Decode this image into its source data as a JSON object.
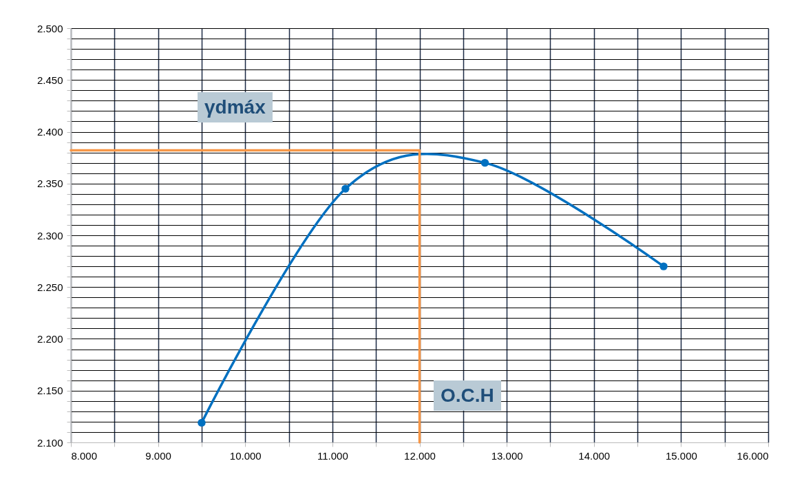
{
  "chart_data": {
    "type": "line",
    "xlim": [
      8,
      16
    ],
    "ylim": [
      2.1,
      2.5
    ],
    "grid": true,
    "xticks": [
      {
        "value": 8,
        "label": "8.000"
      },
      {
        "value": 8.5,
        "label": null
      },
      {
        "value": 9,
        "label": "9.000"
      },
      {
        "value": 9.5,
        "label": null
      },
      {
        "value": 10,
        "label": "10.000"
      },
      {
        "value": 10.5,
        "label": null
      },
      {
        "value": 11,
        "label": "11.000"
      },
      {
        "value": 11.5,
        "label": null
      },
      {
        "value": 12,
        "label": "12.000"
      },
      {
        "value": 12.5,
        "label": null
      },
      {
        "value": 13,
        "label": "13.000"
      },
      {
        "value": 13.5,
        "label": null
      },
      {
        "value": 14,
        "label": "14.000"
      },
      {
        "value": 14.5,
        "label": null
      },
      {
        "value": 15,
        "label": "15.000"
      },
      {
        "value": 15.5,
        "label": null
      },
      {
        "value": 16,
        "label": "16.000"
      }
    ],
    "yticks": [
      {
        "value": 2.1,
        "label": "2.100"
      },
      {
        "value": 2.11,
        "label": null
      },
      {
        "value": 2.12,
        "label": null
      },
      {
        "value": 2.13,
        "label": null
      },
      {
        "value": 2.14,
        "label": null
      },
      {
        "value": 2.15,
        "label": "2.150"
      },
      {
        "value": 2.16,
        "label": null
      },
      {
        "value": 2.17,
        "label": null
      },
      {
        "value": 2.18,
        "label": null
      },
      {
        "value": 2.19,
        "label": null
      },
      {
        "value": 2.2,
        "label": "2.200"
      },
      {
        "value": 2.21,
        "label": null
      },
      {
        "value": 2.22,
        "label": null
      },
      {
        "value": 2.23,
        "label": null
      },
      {
        "value": 2.24,
        "label": null
      },
      {
        "value": 2.25,
        "label": "2.250"
      },
      {
        "value": 2.26,
        "label": null
      },
      {
        "value": 2.27,
        "label": null
      },
      {
        "value": 2.28,
        "label": null
      },
      {
        "value": 2.29,
        "label": null
      },
      {
        "value": 2.3,
        "label": "2.300"
      },
      {
        "value": 2.31,
        "label": null
      },
      {
        "value": 2.32,
        "label": null
      },
      {
        "value": 2.33,
        "label": null
      },
      {
        "value": 2.34,
        "label": null
      },
      {
        "value": 2.35,
        "label": "2.350"
      },
      {
        "value": 2.36,
        "label": null
      },
      {
        "value": 2.37,
        "label": null
      },
      {
        "value": 2.38,
        "label": null
      },
      {
        "value": 2.39,
        "label": null
      },
      {
        "value": 2.4,
        "label": "2.400"
      },
      {
        "value": 2.41,
        "label": null
      },
      {
        "value": 2.42,
        "label": null
      },
      {
        "value": 2.43,
        "label": null
      },
      {
        "value": 2.44,
        "label": null
      },
      {
        "value": 2.45,
        "label": "2.450"
      },
      {
        "value": 2.46,
        "label": null
      },
      {
        "value": 2.47,
        "label": null
      },
      {
        "value": 2.48,
        "label": null
      },
      {
        "value": 2.49,
        "label": null
      },
      {
        "value": 2.5,
        "label": "2.500"
      }
    ],
    "series": [
      {
        "color": "#0070c0",
        "marker": "circle",
        "x": [
          9.5,
          11.15,
          12.75,
          14.8
        ],
        "values": [
          2.119,
          2.345,
          2.37,
          2.27
        ]
      },
      {
        "color": "#f79646",
        "marker": "none",
        "x": [
          8,
          12,
          12
        ],
        "values": [
          2.382,
          2.382,
          2.1
        ]
      }
    ],
    "annotations": [
      "γdmáx",
      "O.C.H"
    ]
  }
}
